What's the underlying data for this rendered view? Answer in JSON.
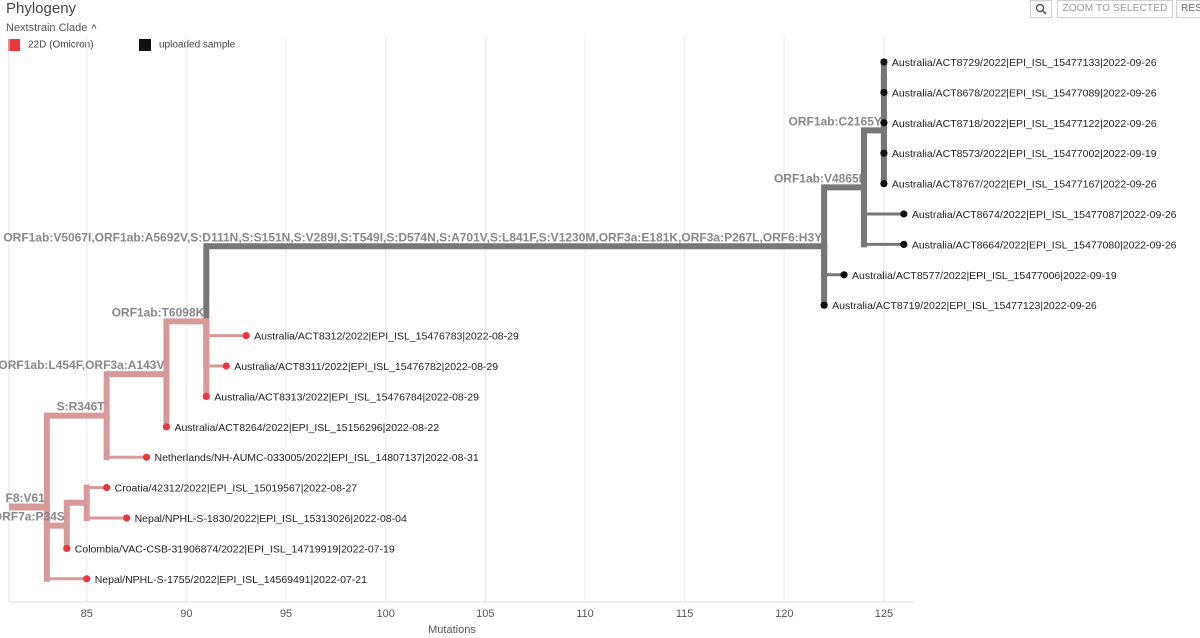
{
  "header": {
    "title": "Phylogeny",
    "zoom_label": "ZOOM TO SELECTED",
    "reset_label": "RES"
  },
  "legend": {
    "title": "Nextstrain Clade",
    "items": [
      {
        "label": "22D (Omicron)",
        "color": "#e8383d"
      },
      {
        "label": "uploaded sample",
        "color": "#111111"
      }
    ]
  },
  "axis": {
    "label": "Mutations",
    "domain": [
      81,
      126.5
    ],
    "ticks": [
      85,
      90,
      95,
      100,
      105,
      110,
      115,
      120,
      125
    ]
  },
  "colors": {
    "branch_red": "#d79a9a",
    "branch_grey": "#777777",
    "tip_red": "#e8383d",
    "tip_black": "#111111",
    "grid": "#e6e6e6"
  },
  "tree": {
    "branch_labels": [
      {
        "text": "F8:V61",
        "node": "root"
      },
      {
        "text": "ORF7a:P34S",
        "node": "n_orf7a"
      },
      {
        "text": "S:R346T",
        "node": "n_r346t"
      },
      {
        "text": "ORF1ab:L454F,ORF3a:A143V",
        "node": "n_l454f"
      },
      {
        "text": "ORF1ab:T6098K",
        "node": "n_t6098k"
      },
      {
        "text": "ORF1ab:V5067I,ORF1ab:A5692V,S:D111N,S:S151N,S:V289I,S:T549I,S:D574N,S:A701V,S:L841F,S:V1230M,ORF3a:E181K,ORF3a:P267L,ORF6:H3Y",
        "node": "n_big"
      },
      {
        "text": "ORF1ab:V4865I",
        "node": "n_v4865i"
      },
      {
        "text": "ORF1ab:C2165Y",
        "node": "n_c2165y"
      }
    ],
    "nodes": [
      {
        "id": "root",
        "parent": null,
        "x": 83
      },
      {
        "id": "n_r346t",
        "parent": "root",
        "x": 86
      },
      {
        "id": "n_orf7a",
        "parent": "root",
        "x": 84
      },
      {
        "id": "n_l454f",
        "parent": "n_r346t",
        "x": 89
      },
      {
        "id": "n_t6098k",
        "parent": "n_l454f",
        "x": 91
      },
      {
        "id": "n_big",
        "parent": "n_t6098k",
        "x": 122
      },
      {
        "id": "n_v4865i",
        "parent": "n_big",
        "x": 124
      },
      {
        "id": "n_c2165y",
        "parent": "n_v4865i",
        "x": 125
      },
      {
        "id": "n_b2",
        "parent": "n_c2165y",
        "x": 125
      },
      {
        "id": "n_a5",
        "parent": "n_orf7a",
        "x": 85
      },
      {
        "id": "t1",
        "parent": "n_b2",
        "x": 125,
        "tip": true,
        "label": "Australia/ACT8729/2022|EPI_ISL_15477133|2022-09-26",
        "group": "uploaded sample"
      },
      {
        "id": "t2",
        "parent": "n_b2",
        "x": 125,
        "tip": true,
        "label": "Australia/ACT8678/2022|EPI_ISL_15477089|2022-09-26",
        "group": "uploaded sample"
      },
      {
        "id": "t3",
        "parent": "n_c2165y",
        "x": 125,
        "tip": true,
        "label": "Australia/ACT8718/2022|EPI_ISL_15477122|2022-09-26",
        "group": "uploaded sample"
      },
      {
        "id": "t4",
        "parent": "n_c2165y",
        "x": 125,
        "tip": true,
        "label": "Australia/ACT8573/2022|EPI_ISL_15477002|2022-09-19",
        "group": "uploaded sample"
      },
      {
        "id": "t5",
        "parent": "n_c2165y",
        "x": 125,
        "tip": true,
        "label": "Australia/ACT8767/2022|EPI_ISL_15477167|2022-09-26",
        "group": "uploaded sample"
      },
      {
        "id": "t6",
        "parent": "n_v4865i",
        "x": 126,
        "tip": true,
        "label": "Australia/ACT8674/2022|EPI_ISL_15477087|2022-09-26",
        "group": "uploaded sample"
      },
      {
        "id": "t7",
        "parent": "n_v4865i",
        "x": 126,
        "tip": true,
        "label": "Australia/ACT8664/2022|EPI_ISL_15477080|2022-09-26",
        "group": "uploaded sample"
      },
      {
        "id": "t8",
        "parent": "n_big",
        "x": 123,
        "tip": true,
        "label": "Australia/ACT8577/2022|EPI_ISL_15477006|2022-09-19",
        "group": "uploaded sample"
      },
      {
        "id": "t9",
        "parent": "n_big",
        "x": 122,
        "tip": true,
        "label": "Australia/ACT8719/2022|EPI_ISL_15477123|2022-09-26",
        "group": "uploaded sample"
      },
      {
        "id": "t10",
        "parent": "n_t6098k",
        "x": 93,
        "tip": true,
        "label": "Australia/ACT8312/2022|EPI_ISL_15476783|2022-08-29",
        "group": "22D (Omicron)"
      },
      {
        "id": "t11",
        "parent": "n_t6098k",
        "x": 92,
        "tip": true,
        "label": "Australia/ACT8311/2022|EPI_ISL_15476782|2022-08-29",
        "group": "22D (Omicron)"
      },
      {
        "id": "t12",
        "parent": "n_t6098k",
        "x": 91,
        "tip": true,
        "label": "Australia/ACT8313/2022|EPI_ISL_15476784|2022-08-29",
        "group": "22D (Omicron)"
      },
      {
        "id": "t13",
        "parent": "n_l454f",
        "x": 89,
        "tip": true,
        "label": "Australia/ACT8264/2022|EPI_ISL_15156296|2022-08-22",
        "group": "22D (Omicron)"
      },
      {
        "id": "t14",
        "parent": "n_r346t",
        "x": 88,
        "tip": true,
        "label": "Netherlands/NH-AUMC-033005/2022|EPI_ISL_14807137|2022-08-31",
        "group": "22D (Omicron)"
      },
      {
        "id": "t15",
        "parent": "n_a5",
        "x": 86,
        "tip": true,
        "label": "Croatia/42312/2022|EPI_ISL_15019567|2022-08-27",
        "group": "22D (Omicron)"
      },
      {
        "id": "t16",
        "parent": "n_a5",
        "x": 87,
        "tip": true,
        "label": "Nepal/NPHL-S-1830/2022|EPI_ISL_15313026|2022-08-04",
        "group": "22D (Omicron)"
      },
      {
        "id": "t17",
        "parent": "n_orf7a",
        "x": 84,
        "tip": true,
        "label": "Colombia/VAC-CSB-31906874/2022|EPI_ISL_14719919|2022-07-19",
        "group": "22D (Omicron)"
      },
      {
        "id": "t18",
        "parent": "root",
        "x": 85,
        "tip": true,
        "label": "Nepal/NPHL-S-1755/2022|EPI_ISL_14569491|2022-07-21",
        "group": "22D (Omicron)"
      }
    ]
  }
}
